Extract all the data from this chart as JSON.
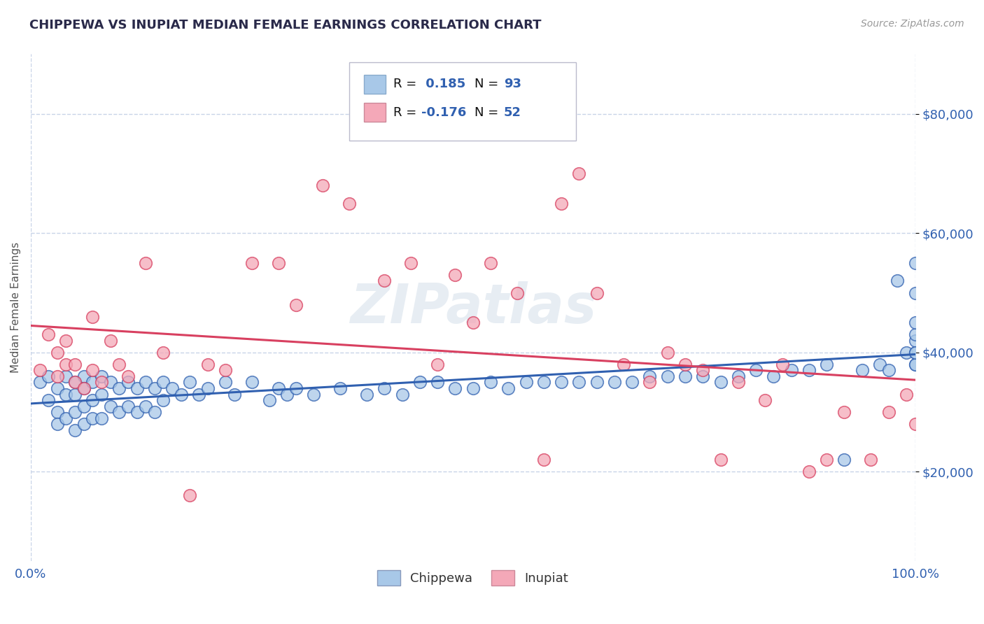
{
  "title": "CHIPPEWA VS INUPIAT MEDIAN FEMALE EARNINGS CORRELATION CHART",
  "source": "Source: ZipAtlas.com",
  "ylabel": "Median Female Earnings",
  "xlim": [
    0,
    1
  ],
  "ylim": [
    5000,
    90000
  ],
  "yticks": [
    20000,
    40000,
    60000,
    80000
  ],
  "xticks": [
    0,
    1
  ],
  "xticklabels": [
    "0.0%",
    "100.0%"
  ],
  "chippewa_color": "#a8c8e8",
  "inupiat_color": "#f4a8b8",
  "chippewa_line_color": "#3060b0",
  "inupiat_line_color": "#d84060",
  "grid_color": "#c8d4e8",
  "title_color": "#2a2a4a",
  "axis_label_color": "#3060b0",
  "watermark": "ZIPatlas",
  "legend_label1": "Chippewa",
  "legend_label2": "Inupiat",
  "chippewa_x": [
    0.01,
    0.02,
    0.02,
    0.03,
    0.03,
    0.03,
    0.04,
    0.04,
    0.04,
    0.05,
    0.05,
    0.05,
    0.05,
    0.06,
    0.06,
    0.06,
    0.06,
    0.07,
    0.07,
    0.07,
    0.08,
    0.08,
    0.08,
    0.09,
    0.09,
    0.1,
    0.1,
    0.11,
    0.11,
    0.12,
    0.12,
    0.13,
    0.13,
    0.14,
    0.14,
    0.15,
    0.15,
    0.16,
    0.17,
    0.18,
    0.19,
    0.2,
    0.22,
    0.23,
    0.25,
    0.27,
    0.28,
    0.29,
    0.3,
    0.32,
    0.35,
    0.38,
    0.4,
    0.42,
    0.44,
    0.46,
    0.48,
    0.5,
    0.52,
    0.54,
    0.56,
    0.58,
    0.6,
    0.62,
    0.64,
    0.66,
    0.68,
    0.7,
    0.72,
    0.74,
    0.76,
    0.78,
    0.8,
    0.82,
    0.84,
    0.86,
    0.88,
    0.9,
    0.92,
    0.94,
    0.96,
    0.97,
    0.98,
    0.99,
    1.0,
    1.0,
    1.0,
    1.0,
    1.0,
    1.0,
    1.0,
    1.0,
    1.0
  ],
  "chippewa_y": [
    35000,
    36000,
    32000,
    34000,
    30000,
    28000,
    36000,
    33000,
    29000,
    35000,
    33000,
    30000,
    27000,
    36000,
    34000,
    31000,
    28000,
    35000,
    32000,
    29000,
    36000,
    33000,
    29000,
    35000,
    31000,
    34000,
    30000,
    35000,
    31000,
    34000,
    30000,
    35000,
    31000,
    34000,
    30000,
    35000,
    32000,
    34000,
    33000,
    35000,
    33000,
    34000,
    35000,
    33000,
    35000,
    32000,
    34000,
    33000,
    34000,
    33000,
    34000,
    33000,
    34000,
    33000,
    35000,
    35000,
    34000,
    34000,
    35000,
    34000,
    35000,
    35000,
    35000,
    35000,
    35000,
    35000,
    35000,
    36000,
    36000,
    36000,
    36000,
    35000,
    36000,
    37000,
    36000,
    37000,
    37000,
    38000,
    22000,
    37000,
    38000,
    37000,
    52000,
    40000,
    40000,
    42000,
    43000,
    45000,
    38000,
    38000,
    55000,
    50000,
    40000
  ],
  "inupiat_x": [
    0.01,
    0.02,
    0.03,
    0.03,
    0.04,
    0.04,
    0.05,
    0.05,
    0.06,
    0.07,
    0.07,
    0.08,
    0.09,
    0.1,
    0.11,
    0.13,
    0.15,
    0.18,
    0.2,
    0.22,
    0.25,
    0.28,
    0.3,
    0.33,
    0.36,
    0.4,
    0.43,
    0.46,
    0.48,
    0.5,
    0.52,
    0.55,
    0.58,
    0.6,
    0.62,
    0.64,
    0.67,
    0.7,
    0.72,
    0.74,
    0.76,
    0.78,
    0.8,
    0.83,
    0.85,
    0.88,
    0.9,
    0.92,
    0.95,
    0.97,
    0.99,
    1.0
  ],
  "inupiat_y": [
    37000,
    43000,
    40000,
    36000,
    42000,
    38000,
    38000,
    35000,
    34000,
    46000,
    37000,
    35000,
    42000,
    38000,
    36000,
    55000,
    40000,
    16000,
    38000,
    37000,
    55000,
    55000,
    48000,
    68000,
    65000,
    52000,
    55000,
    38000,
    53000,
    45000,
    55000,
    50000,
    22000,
    65000,
    70000,
    50000,
    38000,
    35000,
    40000,
    38000,
    37000,
    22000,
    35000,
    32000,
    38000,
    20000,
    22000,
    30000,
    22000,
    30000,
    33000,
    28000
  ]
}
